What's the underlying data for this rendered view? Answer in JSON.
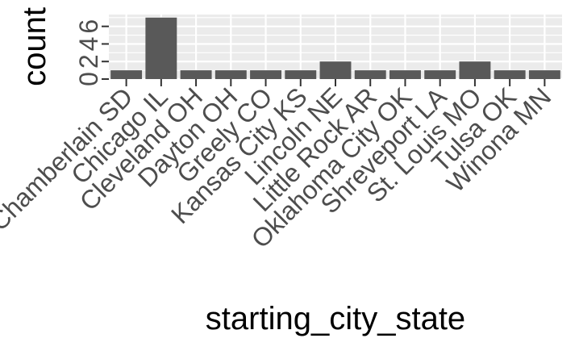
{
  "chart_data": {
    "type": "bar",
    "title": "",
    "xlabel": "starting_city_state",
    "ylabel": "count",
    "categories": [
      "Chamberlain SD",
      "Chicago IL",
      "Cleveland OH",
      "Dayton OH",
      "Greely CO",
      "Kansas City KS",
      "Lincoln NE",
      "Little Rock AR",
      "Oklahoma City OK",
      "Shreveport LA",
      "St. Louis MO",
      "Tulsa OK",
      "Winona MN"
    ],
    "values": [
      1,
      7,
      1,
      1,
      1,
      1,
      2,
      1,
      1,
      1,
      2,
      1,
      1
    ],
    "yticks": [
      0,
      2,
      4,
      6
    ],
    "ytick_labels": [
      "0",
      "2",
      "4",
      "6"
    ],
    "ylim": [
      0,
      7.35
    ],
    "grid": true,
    "colors": {
      "panel": "#ebebeb",
      "grid": "#ffffff",
      "bar": "#595959",
      "text": "#4d4d4d",
      "title_text": "#000000"
    }
  }
}
